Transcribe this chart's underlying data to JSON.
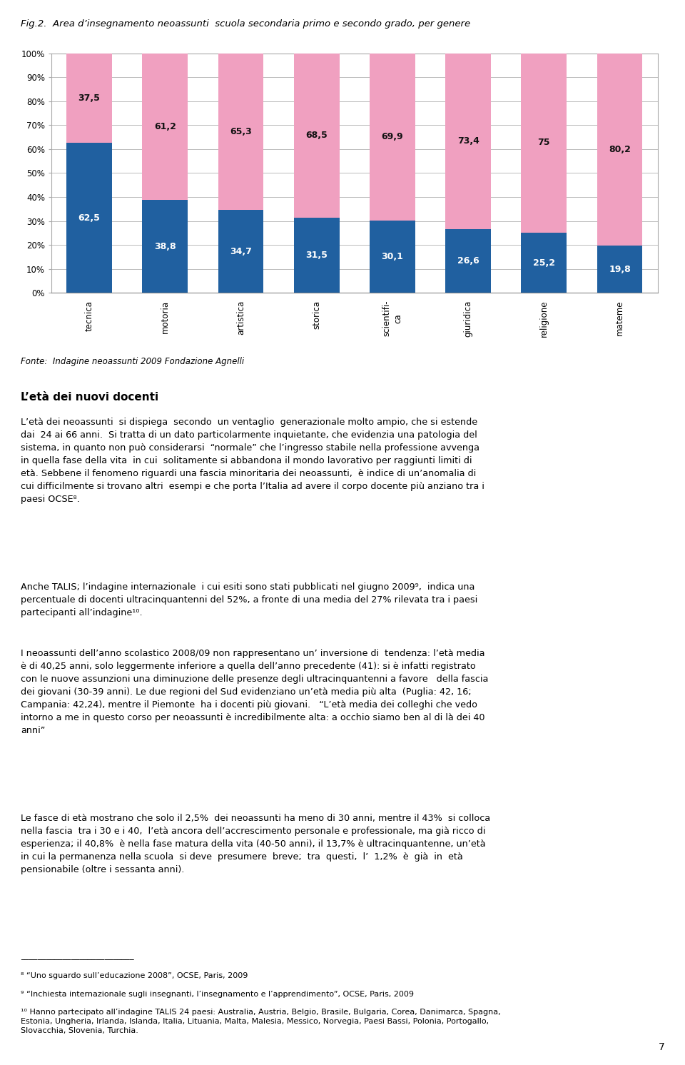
{
  "title": "Fig.2.  Area d’insegnamento neoassunti  scuola secondaria primo e secondo grado, per genere",
  "blue_values": [
    62.5,
    38.8,
    34.7,
    31.5,
    30.1,
    26.6,
    25.2,
    19.8
  ],
  "pink_values": [
    37.5,
    61.2,
    65.3,
    68.5,
    69.9,
    73.4,
    75.0,
    80.2
  ],
  "blue_labels": [
    "62,5",
    "38,8",
    "34,7",
    "31,5",
    "30,1",
    "26,6",
    "25,2",
    "19,8"
  ],
  "pink_labels": [
    "37,5",
    "61,2",
    "65,3",
    "68,5",
    "69,9",
    "73,4",
    "75",
    "80,2"
  ],
  "x_labels": [
    "tecnica",
    "motoria",
    "artistica",
    "storica",
    "scientifi-\nca",
    "giuridica",
    "religione",
    "mateme"
  ],
  "blue_color": "#2060A0",
  "pink_color": "#F0A0C0",
  "fonte": "Fonte:  Indagine neoassunti 2009 Fondazione Agnelli",
  "section_title": "L’età dei nuovi docenti",
  "para1": "L’età dei neoassunti  si dispiega  secondo  un ventaglio  generazionale molto ampio, che si estende\ndai  24 ai 66 anni.  Si tratta di un dato particolarmente inquietante, che evidenzia una patologia del\nsistema, in quanto non può considerarsi  “normale” che l’ingresso stabile nella professione avvenga\nin quella fase della vita  in cui  solitamente si abbandona il mondo lavorativo per raggiunti limiti di\netà. Sebbene il fenomeno riguardi una fascia minoritaria dei neoassunti,  è indice di un’anomalia di\ncui difficilmente si trovano altri  esempi e che porta l’Italia ad avere il corpo docente più anziano tra i\npaesi OCSE⁸.",
  "para2": "Anche TALIS; l’indagine internazionale  i cui esiti sono stati pubblicati nel giugno 2009⁹,  indica una\npercentuale di docenti ultracinquantenni del 52%, a fronte di una media del 27% rilevata tra i paesi\npartecipanti all’indagine¹⁰.",
  "para3": "I neoassunti dell’anno scolastico 2008/09 non rappresentano un’ inversione di  tendenza: l’età media\nè di 40,25 anni, solo leggermente inferiore a quella dell’anno precedente (41): si è infatti registrato\ncon le nuove assunzioni una diminuzione delle presenze degli ultracinquantenni a favore   della fascia\ndei giovani (30-39 anni). Le due regioni del Sud evidenziano un’età media più alta  (Puglia: 42, 16;\nCampania: 42,24), mentre il Piemonte  ha i docenti più giovani.   “L’età media dei colleghi che vedo\nintorno a me in questo corso per neoassunti è incredibilmente alta: a occhio siamo ben al di là dei 40\nanni”",
  "para4": "Le fasce di età mostrano che solo il 2,5%  dei neoassunti ha meno di 30 anni, mentre il 43%  si colloca\nnella fascia  tra i 30 e i 40,  l’età ancora dell’accrescimento personale e professionale, ma già ricco di\nesperienza; il 40,8%  è nella fase matura della vita (40-50 anni), il 13,7% è ultracinquantenne, un’età\nin cui la permanenza nella scuola  si deve  presumere  breve;  tra  questi,  l’  1,2%  è  già  in  età\npensionabile (oltre i sessanta anni).",
  "fn8": "⁸ “Uno sguardo sull’educazione 2008”, OCSE, Paris, 2009",
  "fn9": "⁹ “Inchiesta internazionale sugli insegnanti, l’insegnamento e l’apprendimento”, OCSE, Paris, 2009",
  "fn10": "¹⁰ Hanno partecipato all’indagine TALIS 24 paesi: Australia, Austria, Belgio, Brasile, Bulgaria, Corea, Danimarca, Spagna,\nEstonia, Ungheria, Irlanda, Islanda, Italia, Lituania, Malta, Malesia, Messico, Norvegia, Paesi Bassi, Polonia, Portogallo,\nSlovacchia, Slovenia, Turchia.",
  "page_num": "7",
  "bg_color": "#FFFFFF",
  "grid_color": "#BBBBBB",
  "text_color": "#000000",
  "ytick_labels": [
    "0%",
    "10%",
    "20%",
    "30%",
    "40%",
    "50%",
    "60%",
    "70%",
    "80%",
    "90%",
    "100%"
  ]
}
